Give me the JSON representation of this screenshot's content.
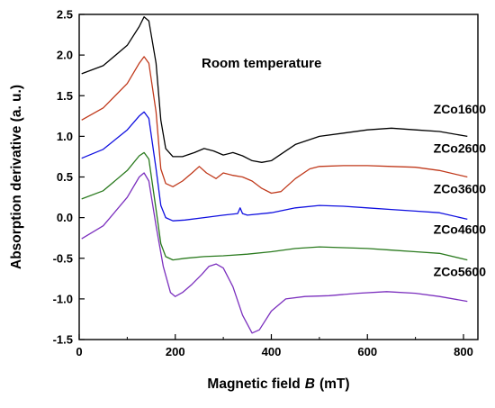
{
  "chart_data": {
    "type": "line",
    "title": "",
    "annotation": "Room temperature",
    "xlabel": "Magnetic field",
    "xlabel_var": "B",
    "xlabel_unit": "(mT)",
    "ylabel": "Absorption derivative (a. u.)",
    "xlim": [
      0,
      830
    ],
    "ylim": [
      -1.5,
      2.5
    ],
    "x_ticks": [
      0,
      200,
      400,
      600,
      800
    ],
    "x_tick_labels": [
      "0",
      "200",
      "400",
      "600",
      "800"
    ],
    "y_ticks": [
      -1.5,
      -1.0,
      -0.5,
      0.0,
      0.5,
      1.0,
      1.5,
      2.0,
      2.5
    ],
    "y_tick_labels": [
      "-1.5",
      "-1.0",
      "-0.5",
      "0.0",
      "0.5",
      "1.0",
      "1.5",
      "2.0",
      "2.5"
    ],
    "grid": false,
    "legend": "none (series labelled directly on plot)",
    "series": [
      {
        "name": "ZCo1600",
        "color": "#000000",
        "points": [
          [
            5,
            1.77
          ],
          [
            50,
            1.87
          ],
          [
            100,
            2.12
          ],
          [
            125,
            2.35
          ],
          [
            135,
            2.47
          ],
          [
            145,
            2.42
          ],
          [
            160,
            1.9
          ],
          [
            170,
            1.2
          ],
          [
            180,
            0.85
          ],
          [
            195,
            0.75
          ],
          [
            215,
            0.75
          ],
          [
            240,
            0.8
          ],
          [
            260,
            0.85
          ],
          [
            280,
            0.82
          ],
          [
            300,
            0.77
          ],
          [
            320,
            0.8
          ],
          [
            340,
            0.76
          ],
          [
            360,
            0.7
          ],
          [
            380,
            0.68
          ],
          [
            400,
            0.7
          ],
          [
            420,
            0.78
          ],
          [
            450,
            0.9
          ],
          [
            500,
            1.0
          ],
          [
            550,
            1.04
          ],
          [
            600,
            1.08
          ],
          [
            650,
            1.1
          ],
          [
            700,
            1.08
          ],
          [
            750,
            1.06
          ],
          [
            808,
            1.0
          ]
        ]
      },
      {
        "name": "ZCo2600",
        "color": "#c0391b",
        "points": [
          [
            5,
            1.2
          ],
          [
            50,
            1.35
          ],
          [
            100,
            1.65
          ],
          [
            125,
            1.9
          ],
          [
            135,
            1.98
          ],
          [
            145,
            1.9
          ],
          [
            160,
            1.3
          ],
          [
            170,
            0.6
          ],
          [
            180,
            0.42
          ],
          [
            195,
            0.38
          ],
          [
            215,
            0.45
          ],
          [
            235,
            0.55
          ],
          [
            250,
            0.63
          ],
          [
            265,
            0.55
          ],
          [
            285,
            0.48
          ],
          [
            300,
            0.55
          ],
          [
            320,
            0.52
          ],
          [
            340,
            0.5
          ],
          [
            360,
            0.45
          ],
          [
            380,
            0.36
          ],
          [
            400,
            0.3
          ],
          [
            420,
            0.32
          ],
          [
            450,
            0.48
          ],
          [
            480,
            0.6
          ],
          [
            500,
            0.63
          ],
          [
            550,
            0.64
          ],
          [
            600,
            0.64
          ],
          [
            650,
            0.63
          ],
          [
            700,
            0.62
          ],
          [
            750,
            0.58
          ],
          [
            808,
            0.5
          ]
        ]
      },
      {
        "name": "ZCo3600",
        "color": "#1010e0",
        "points": [
          [
            5,
            0.73
          ],
          [
            50,
            0.84
          ],
          [
            100,
            1.08
          ],
          [
            125,
            1.25
          ],
          [
            135,
            1.3
          ],
          [
            145,
            1.22
          ],
          [
            160,
            0.6
          ],
          [
            170,
            0.15
          ],
          [
            180,
            0.0
          ],
          [
            195,
            -0.04
          ],
          [
            220,
            -0.03
          ],
          [
            260,
            0.0
          ],
          [
            300,
            0.03
          ],
          [
            330,
            0.05
          ],
          [
            335,
            0.12
          ],
          [
            340,
            0.05
          ],
          [
            350,
            0.03
          ],
          [
            400,
            0.06
          ],
          [
            450,
            0.12
          ],
          [
            500,
            0.15
          ],
          [
            550,
            0.14
          ],
          [
            600,
            0.12
          ],
          [
            650,
            0.1
          ],
          [
            700,
            0.08
          ],
          [
            750,
            0.06
          ],
          [
            808,
            -0.02
          ]
        ]
      },
      {
        "name": "ZCo4600",
        "color": "#2a7a1e",
        "points": [
          [
            5,
            0.23
          ],
          [
            50,
            0.33
          ],
          [
            100,
            0.58
          ],
          [
            125,
            0.76
          ],
          [
            135,
            0.8
          ],
          [
            145,
            0.72
          ],
          [
            160,
            0.1
          ],
          [
            170,
            -0.32
          ],
          [
            180,
            -0.48
          ],
          [
            195,
            -0.52
          ],
          [
            220,
            -0.5
          ],
          [
            260,
            -0.48
          ],
          [
            300,
            -0.47
          ],
          [
            350,
            -0.45
          ],
          [
            400,
            -0.42
          ],
          [
            450,
            -0.38
          ],
          [
            500,
            -0.36
          ],
          [
            550,
            -0.37
          ],
          [
            600,
            -0.38
          ],
          [
            650,
            -0.4
          ],
          [
            700,
            -0.42
          ],
          [
            750,
            -0.44
          ],
          [
            808,
            -0.52
          ]
        ]
      },
      {
        "name": "ZCo5600",
        "color": "#7b2fbe",
        "points": [
          [
            5,
            -0.26
          ],
          [
            50,
            -0.1
          ],
          [
            100,
            0.25
          ],
          [
            125,
            0.5
          ],
          [
            135,
            0.55
          ],
          [
            145,
            0.45
          ],
          [
            160,
            -0.1
          ],
          [
            175,
            -0.6
          ],
          [
            190,
            -0.92
          ],
          [
            200,
            -0.97
          ],
          [
            215,
            -0.92
          ],
          [
            235,
            -0.82
          ],
          [
            255,
            -0.7
          ],
          [
            270,
            -0.6
          ],
          [
            285,
            -0.57
          ],
          [
            300,
            -0.62
          ],
          [
            320,
            -0.85
          ],
          [
            340,
            -1.2
          ],
          [
            360,
            -1.42
          ],
          [
            375,
            -1.38
          ],
          [
            400,
            -1.15
          ],
          [
            430,
            -1.0
          ],
          [
            470,
            -0.97
          ],
          [
            520,
            -0.96
          ],
          [
            580,
            -0.93
          ],
          [
            640,
            -0.91
          ],
          [
            700,
            -0.93
          ],
          [
            750,
            -0.97
          ],
          [
            808,
            -1.03
          ]
        ]
      }
    ]
  }
}
